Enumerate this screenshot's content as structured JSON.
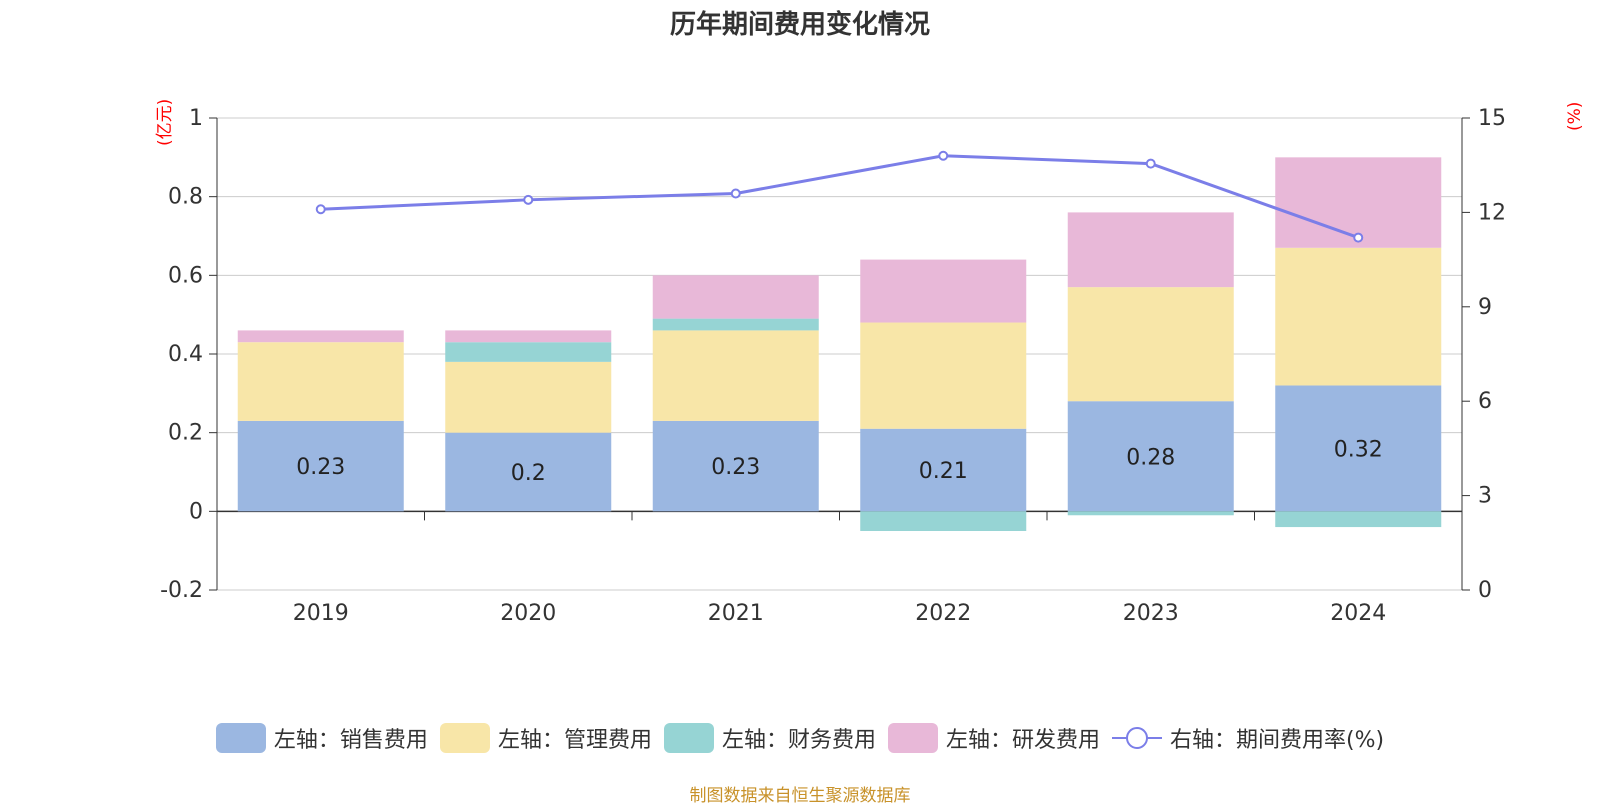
{
  "title": "历年期间费用变化情况",
  "source": "制图数据来自恒生聚源数据库",
  "colors": {
    "sales": "#9bb7e1",
    "admin": "#f8e6a8",
    "finance": "#96d4d4",
    "rd": "#e8b8d8",
    "line": "#7b7ee8",
    "unit": "#ff0000",
    "source": "#c8922a",
    "text": "#333333"
  },
  "chart_data": {
    "type": "bar",
    "stacked": true,
    "title": "历年期间费用变化情况",
    "categories": [
      "2019",
      "2020",
      "2021",
      "2022",
      "2023",
      "2024"
    ],
    "left_axis": {
      "unit": "(亿元)",
      "ylim": [
        -0.2,
        1
      ],
      "ticks": [
        "-0.2",
        "0",
        "0.2",
        "0.4",
        "0.6",
        "0.8",
        "1"
      ],
      "tick_values": [
        -0.2,
        0,
        0.2,
        0.4,
        0.6,
        0.8,
        1
      ]
    },
    "right_axis": {
      "unit": "(%)",
      "ylim": [
        0,
        15
      ],
      "ticks": [
        "0",
        "3",
        "6",
        "9",
        "12",
        "15"
      ],
      "tick_values": [
        0,
        3,
        6,
        9,
        12,
        15
      ]
    },
    "series": [
      {
        "name": "左轴：销售费用",
        "key": "sales",
        "values": [
          0.23,
          0.2,
          0.23,
          0.21,
          0.28,
          0.32
        ],
        "labels": [
          "0.23",
          "0.2",
          "0.23",
          "0.21",
          "0.28",
          "0.32"
        ]
      },
      {
        "name": "左轴：管理费用",
        "key": "admin",
        "values": [
          0.2,
          0.18,
          0.23,
          0.27,
          0.29,
          0.35
        ]
      },
      {
        "name": "左轴：财务费用",
        "key": "finance",
        "values": [
          0.0,
          0.05,
          0.03,
          -0.05,
          -0.01,
          -0.04
        ]
      },
      {
        "name": "左轴：研发费用",
        "key": "rd",
        "values": [
          0.03,
          0.03,
          0.11,
          0.16,
          0.19,
          0.23
        ]
      }
    ],
    "line_series": {
      "name": "右轴：期间费用率(%)",
      "key": "line",
      "values": [
        12.1,
        12.4,
        12.6,
        13.8,
        13.55,
        11.2
      ]
    },
    "grid": true,
    "legend_position": "bottom"
  }
}
